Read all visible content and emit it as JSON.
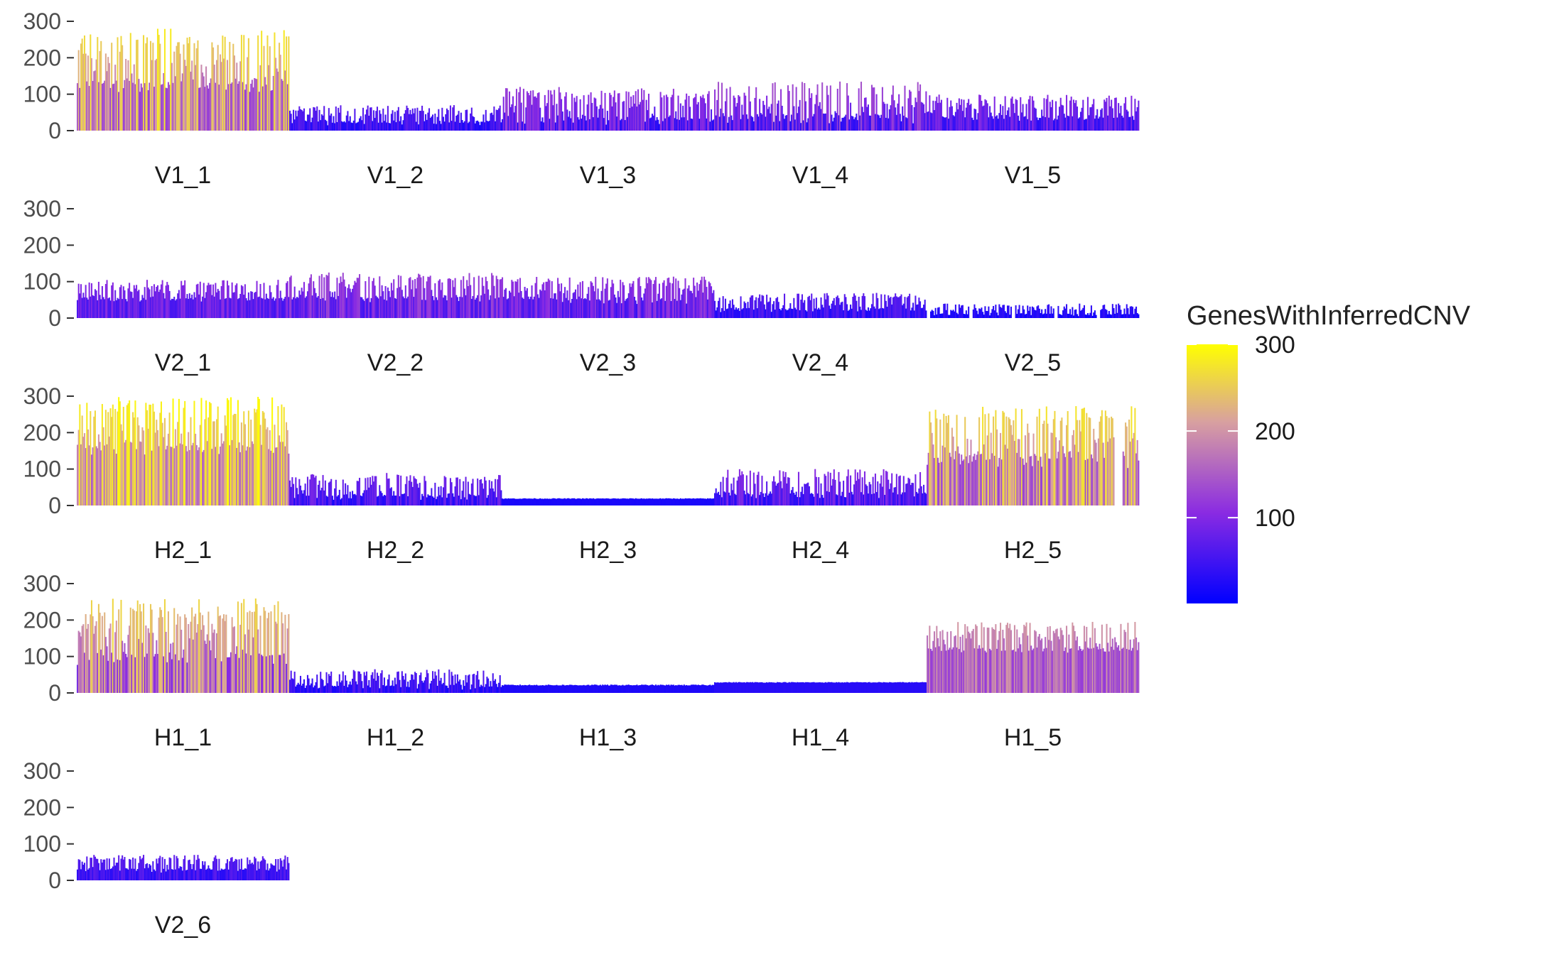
{
  "chart_data": {
    "type": "bar",
    "legend": {
      "title": "GenesWithInferredCNV",
      "placement": "right",
      "range": [
        1,
        300
      ],
      "breaks": [
        100,
        200,
        300
      ],
      "break_labels": [
        "100",
        "200",
        "300"
      ],
      "colors": [
        "#0000FF",
        "#8A2BE2",
        "#D8A0A0",
        "#FFFF00"
      ]
    },
    "y_axis": {
      "ylim": [
        0,
        300
      ],
      "ticks": [
        0,
        100,
        200,
        300
      ],
      "tick_labels": [
        "0",
        "100",
        "200",
        "300"
      ]
    },
    "grid": false,
    "rows": [
      {
        "panels": [
          {
            "label": "V1_1",
            "base": 150,
            "amp": 130,
            "n": 180
          },
          {
            "label": "V1_2",
            "base": 30,
            "amp": 40,
            "n": 180
          },
          {
            "label": "V1_3",
            "base": 45,
            "amp": 75,
            "n": 180
          },
          {
            "label": "V1_4",
            "base": 50,
            "amp": 85,
            "n": 180
          },
          {
            "label": "V1_5",
            "base": 45,
            "amp": 55,
            "n": 180
          }
        ]
      },
      {
        "panels": [
          {
            "label": "V2_1",
            "base": 60,
            "amp": 45,
            "n": 180
          },
          {
            "label": "V2_2",
            "base": 65,
            "amp": 60,
            "n": 180
          },
          {
            "label": "V2_3",
            "base": 60,
            "amp": 55,
            "n": 180
          },
          {
            "label": "V2_4",
            "base": 30,
            "amp": 40,
            "n": 180
          },
          {
            "label": "V2_5",
            "base": 15,
            "amp": 25,
            "n": 180,
            "gaps": true
          }
        ]
      },
      {
        "panels": [
          {
            "label": "H2_1",
            "base": 180,
            "amp": 120,
            "n": 180
          },
          {
            "label": "H2_2",
            "base": 35,
            "amp": 55,
            "n": 180
          },
          {
            "label": "H2_3",
            "base": 18,
            "amp": 2,
            "n": 180
          },
          {
            "label": "H2_4",
            "base": 40,
            "amp": 60,
            "n": 180
          },
          {
            "label": "H2_5",
            "base": 150,
            "amp": 125,
            "n": 180,
            "dip": true
          }
        ]
      },
      {
        "panels": [
          {
            "label": "H1_1",
            "base": 120,
            "amp": 140,
            "n": 180
          },
          {
            "label": "H1_2",
            "base": 25,
            "amp": 40,
            "n": 180
          },
          {
            "label": "H1_3",
            "base": 20,
            "amp": 3,
            "n": 180
          },
          {
            "label": "H1_4",
            "base": 28,
            "amp": 2,
            "n": 180
          },
          {
            "label": "H1_5",
            "base": 130,
            "amp": 65,
            "n": 180
          }
        ]
      },
      {
        "panels": [
          {
            "label": "V2_6",
            "base": 35,
            "amp": 35,
            "n": 180
          }
        ]
      }
    ]
  }
}
